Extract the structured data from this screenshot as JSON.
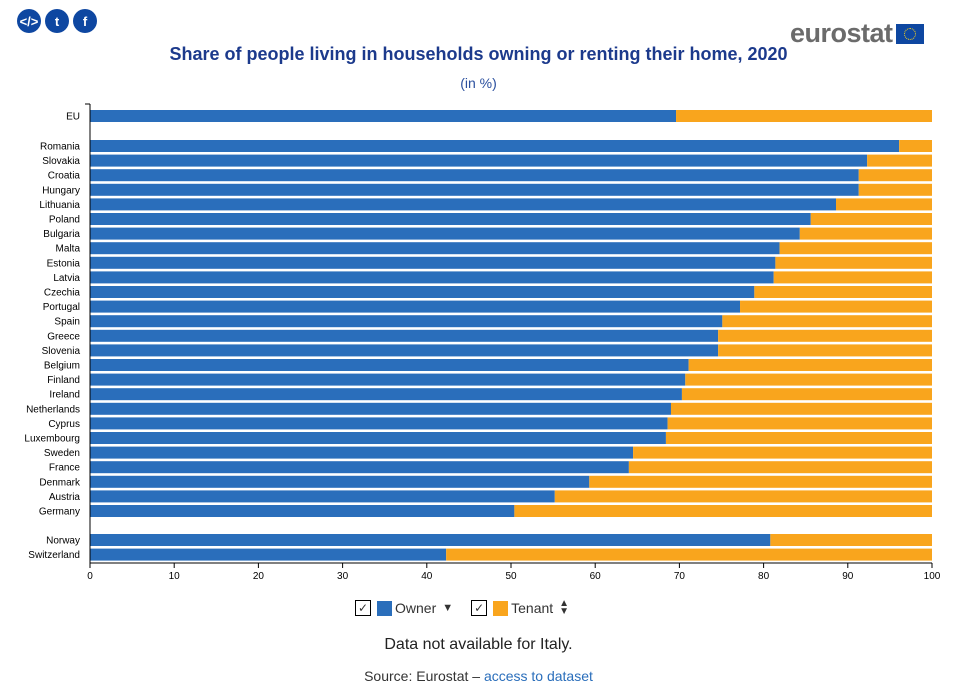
{
  "header": {
    "share_icons": [
      "embed-icon",
      "twitter-icon",
      "facebook-icon"
    ],
    "logo": "eurostat"
  },
  "chart_data": {
    "type": "bar",
    "orientation": "horizontal",
    "stacked": true,
    "title": "Share of people living in households owning or renting their home, 2020",
    "subtitle": "(in %)",
    "xlim": [
      0,
      100
    ],
    "xticks": [
      0,
      10,
      20,
      30,
      40,
      50,
      60,
      70,
      80,
      90,
      100
    ],
    "groups": [
      [
        "EU"
      ],
      [
        "Romania",
        "Slovakia",
        "Croatia",
        "Hungary",
        "Lithuania",
        "Poland",
        "Bulgaria",
        "Malta",
        "Estonia",
        "Latvia",
        "Czechia",
        "Portugal",
        "Spain",
        "Greece",
        "Slovenia",
        "Belgium",
        "Finland",
        "Ireland",
        "Netherlands",
        "Cyprus",
        "Luxembourg",
        "Sweden",
        "France",
        "Denmark",
        "Austria",
        "Germany"
      ],
      [
        "Norway",
        "Switzerland"
      ]
    ],
    "categories": [
      "EU",
      "Romania",
      "Slovakia",
      "Croatia",
      "Hungary",
      "Lithuania",
      "Poland",
      "Bulgaria",
      "Malta",
      "Estonia",
      "Latvia",
      "Czechia",
      "Portugal",
      "Spain",
      "Greece",
      "Slovenia",
      "Belgium",
      "Finland",
      "Ireland",
      "Netherlands",
      "Cyprus",
      "Luxembourg",
      "Sweden",
      "France",
      "Denmark",
      "Austria",
      "Germany",
      "Norway",
      "Switzerland"
    ],
    "series": [
      {
        "name": "Owner",
        "color": "#2a6ebb",
        "values": [
          69.6,
          96.1,
          92.3,
          91.3,
          91.3,
          88.6,
          85.6,
          84.3,
          81.9,
          81.4,
          81.2,
          78.9,
          77.2,
          75.1,
          74.6,
          74.6,
          71.1,
          70.7,
          70.3,
          69.0,
          68.6,
          68.4,
          64.5,
          64.0,
          59.3,
          55.2,
          50.4,
          80.8,
          42.3
        ]
      },
      {
        "name": "Tenant",
        "color": "#f9a51d",
        "values": [
          30.4,
          3.9,
          7.7,
          8.7,
          8.7,
          11.4,
          14.4,
          15.7,
          18.1,
          18.6,
          18.8,
          21.1,
          22.8,
          24.9,
          25.4,
          25.4,
          28.9,
          29.3,
          29.7,
          31.0,
          31.4,
          31.6,
          35.5,
          36.0,
          40.7,
          44.8,
          49.6,
          19.2,
          57.7
        ]
      }
    ],
    "legend": "bottom-center"
  },
  "legend": {
    "owner": "Owner",
    "tenant": "Tenant",
    "check": "✓"
  },
  "note": "Data not available for Italy.",
  "source": {
    "prefix": "Source: Eurostat – ",
    "link": "access to dataset"
  }
}
